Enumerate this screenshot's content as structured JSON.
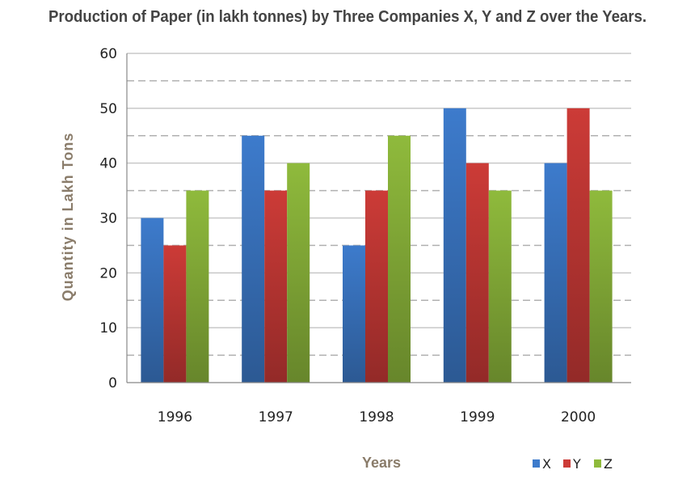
{
  "chart_data": {
    "type": "bar",
    "title": "Production of Paper (in lakh tonnes) by Three Companies X, Y and Z over the Years.",
    "xlabel": "Years",
    "ylabel": "Quantity in Lakh Tons",
    "categories": [
      "1996",
      "1997",
      "1998",
      "1999",
      "2000"
    ],
    "series": [
      {
        "name": "X",
        "values": [
          30,
          45,
          25,
          50,
          40
        ],
        "color": "#3d7bcc"
      },
      {
        "name": "Y",
        "values": [
          25,
          35,
          35,
          40,
          50
        ],
        "color": "#cc3b37"
      },
      {
        "name": "Z",
        "values": [
          35,
          40,
          45,
          35,
          35
        ],
        "color": "#8fba3c"
      }
    ],
    "ylim": [
      0,
      60
    ],
    "yticks": [
      "0",
      "10",
      "20",
      "30",
      "40",
      "50",
      "60"
    ],
    "grid": true,
    "legend": "bottom-right"
  }
}
